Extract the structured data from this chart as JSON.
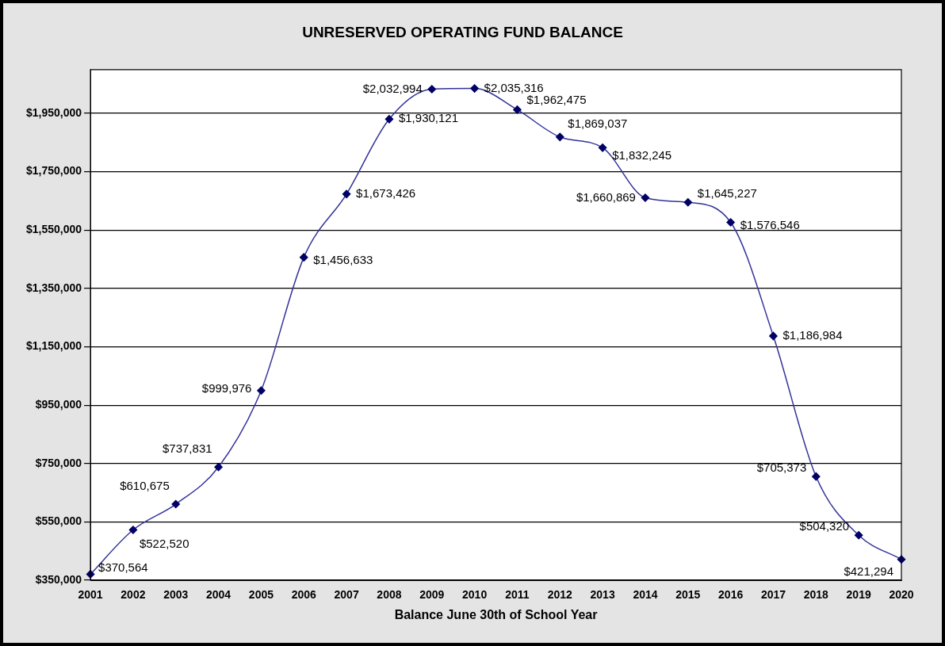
{
  "chart_data": {
    "type": "line",
    "title": "UNRESERVED OPERATING FUND BALANCE",
    "xlabel": "Balance June 30th of School Year",
    "categories": [
      "2001",
      "2002",
      "2003",
      "2004",
      "2005",
      "2006",
      "2007",
      "2008",
      "2009",
      "2010",
      "2011",
      "2012",
      "2013",
      "2014",
      "2015",
      "2016",
      "2017",
      "2018",
      "2019",
      "2020"
    ],
    "series": [
      {
        "color": "#333399",
        "values": [
          370564,
          522520,
          610675,
          737831,
          999976,
          1456633,
          1673426,
          1930121,
          2032994,
          2035316,
          1962475,
          1869037,
          1832245,
          1660869,
          1645227,
          1576546,
          1186984,
          705373,
          504320,
          421294
        ],
        "value_labels": [
          "$370,564",
          "$522,520",
          "$610,675",
          "$737,831",
          "$999,976",
          "$1,456,633",
          "$1,673,426",
          "$1,930,121",
          "$2,032,994",
          "$2,035,316",
          "$1,962,475",
          "$1,869,037",
          "$1,832,245",
          "$1,660,869",
          "$1,645,227",
          "$1,576,546",
          "$1,186,984",
          "$705,373",
          "$504,320",
          "$421,294"
        ]
      }
    ],
    "ylim": [
      350000,
      2100000
    ],
    "yticks": [
      {
        "value": 350000,
        "label": "$350,000"
      },
      {
        "value": 550000,
        "label": "$550,000"
      },
      {
        "value": 750000,
        "label": "$750,000"
      },
      {
        "value": 950000,
        "label": "$950,000"
      },
      {
        "value": 1150000,
        "label": "$1,150,000"
      },
      {
        "value": 1350000,
        "label": "$1,350,000"
      },
      {
        "value": 1550000,
        "label": "$1,550,000"
      },
      {
        "value": 1750000,
        "label": "$1,750,000"
      },
      {
        "value": 1950000,
        "label": "$1,950,000"
      }
    ],
    "grid": "y",
    "legend": false,
    "marker": "diamond",
    "line_style": "solid"
  }
}
